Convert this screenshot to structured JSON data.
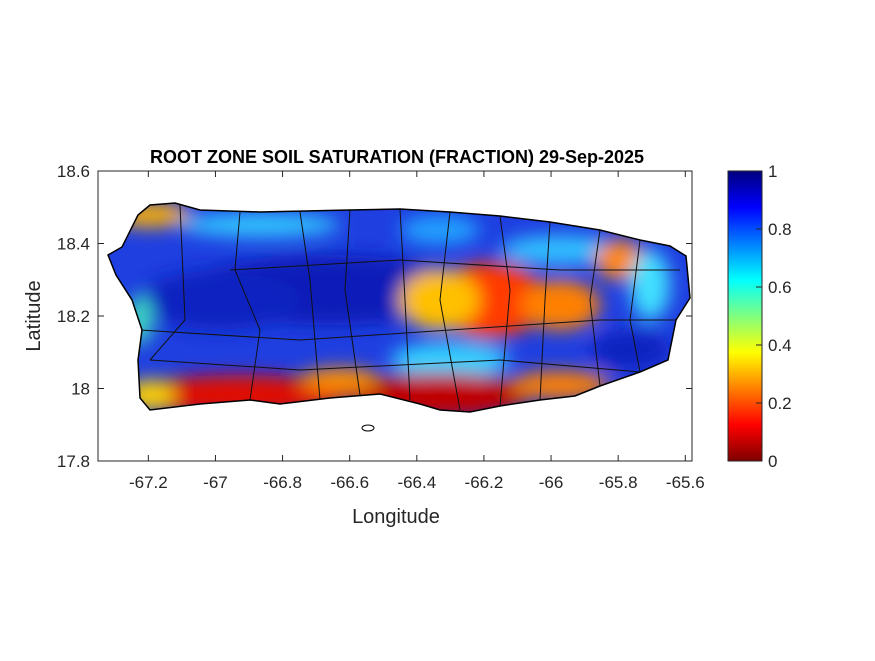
{
  "chart_data": {
    "type": "heatmap",
    "title": "ROOT ZONE SOIL SATURATION (FRACTION) 29-Sep-2025",
    "xlabel": "Longitude",
    "ylabel": "Latitude",
    "xlim": [
      -67.35,
      -65.58
    ],
    "ylim": [
      17.8,
      18.6
    ],
    "xticks": [
      -67.2,
      -67,
      -66.8,
      -66.6,
      -66.4,
      -66.2,
      -66,
      -65.8,
      -65.6
    ],
    "xtick_labels": [
      "-67.2",
      "-67",
      "-66.8",
      "-66.6",
      "-66.4",
      "-66.2",
      "-66",
      "-65.8",
      "-65.6"
    ],
    "yticks": [
      17.8,
      18,
      18.2,
      18.4,
      18.6
    ],
    "ytick_labels": [
      "17.8",
      "18",
      "18.2",
      "18.4",
      "18.6"
    ],
    "colorbar": {
      "colormap": "jet-reversed",
      "range": [
        0,
        1
      ],
      "ticks": [
        0,
        0.2,
        0.4,
        0.6,
        0.8,
        1
      ],
      "tick_labels": [
        "0",
        "0.2",
        "0.4",
        "0.6",
        "0.8",
        "1"
      ]
    },
    "grid": false,
    "region_summary": "north and central interior high saturation (0.8-1), south coast low (0-0.2), east-central low (0.1-0.3)"
  }
}
